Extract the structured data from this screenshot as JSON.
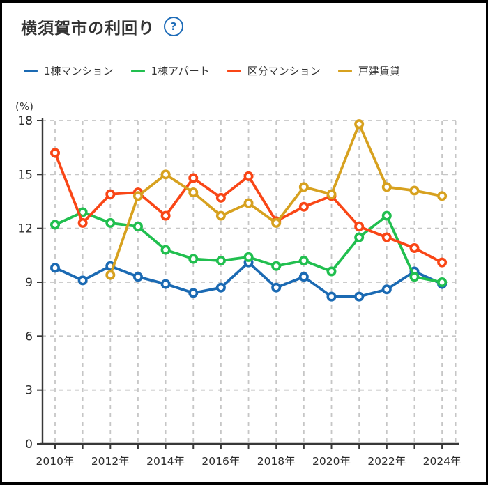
{
  "header": {
    "title": "横須賀市の利回り",
    "help_icon": "?"
  },
  "chart_data": {
    "type": "line",
    "title": "横須賀市の利回り",
    "y_unit": "(%)",
    "ylim": [
      0,
      18
    ],
    "y_ticks": [
      0,
      3,
      6,
      9,
      12,
      15,
      18
    ],
    "x": [
      2010,
      2011,
      2012,
      2013,
      2014,
      2015,
      2016,
      2017,
      2018,
      2019,
      2020,
      2021,
      2022,
      2023,
      2024
    ],
    "x_tick_labels": [
      "2010年",
      "2012年",
      "2014年",
      "2016年",
      "2018年",
      "2020年",
      "2022年",
      "2024年"
    ],
    "x_label_every": 2,
    "grid": "dashed",
    "legend_position": "top",
    "marker": "open-circle",
    "series": [
      {
        "name": "1棟マンション",
        "color": "#1b6ab3",
        "values": [
          9.8,
          9.1,
          9.9,
          9.3,
          8.9,
          8.4,
          8.7,
          10.1,
          8.7,
          9.3,
          8.2,
          8.2,
          8.6,
          9.6,
          8.9
        ]
      },
      {
        "name": "1棟アパート",
        "color": "#21bf4f",
        "values": [
          12.2,
          12.9,
          12.3,
          12.1,
          10.8,
          10.3,
          10.2,
          10.4,
          9.9,
          10.2,
          9.6,
          11.5,
          12.7,
          9.3,
          9.0
        ]
      },
      {
        "name": "区分マンション",
        "color": "#f94616",
        "values": [
          16.2,
          12.3,
          13.9,
          14.0,
          12.7,
          14.8,
          13.7,
          14.9,
          12.4,
          13.2,
          13.8,
          12.1,
          11.5,
          10.9,
          10.1
        ]
      },
      {
        "name": "戸建賃貸",
        "color": "#d7a11f",
        "values": [
          null,
          null,
          9.4,
          13.8,
          15.0,
          14.0,
          12.7,
          13.4,
          12.3,
          14.3,
          13.9,
          17.8,
          14.3,
          14.1,
          13.8
        ]
      }
    ]
  },
  "colors": {
    "axis": "#383838",
    "grid": "#c6c6c6",
    "tick_text": "#2b2b2b",
    "accent_blue": "#1e6cb8"
  }
}
